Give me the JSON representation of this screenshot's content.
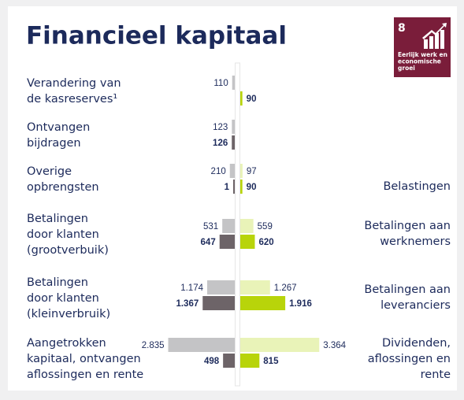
{
  "chart_data": {
    "type": "butterfly",
    "title": "Financieel kapitaal",
    "categories": [
      [
        "Verandering van",
        "de kasreserves¹"
      ],
      [
        "Ontvangen",
        "bijdragen"
      ],
      [
        "Overige",
        "opbrengsten"
      ],
      [
        "Betalingen",
        "door klanten",
        "(grootverbuik)"
      ],
      [
        "Betalingen",
        "door klanten",
        "(kleinverbruik)"
      ],
      [
        "Aangetrokken",
        "kapitaal, ontvangen",
        "aflossingen en rente"
      ]
    ],
    "right_categories": [
      null,
      null,
      [
        "Belastingen"
      ],
      [
        "Betalingen aan",
        "werknemers"
      ],
      [
        "Betalingen aan",
        "leveranciers"
      ],
      [
        "Dividenden,",
        "aflossingen en",
        "rente"
      ]
    ],
    "series": [
      {
        "side": "left",
        "row": "top",
        "color": "#c4c4c6",
        "values": [
          110,
          123,
          210,
          531,
          1174,
          2835
        ],
        "value_labels": [
          "110",
          "123",
          "210",
          "531",
          "1.174",
          "2.835"
        ]
      },
      {
        "side": "left",
        "row": "bottom",
        "color": "#6d6468",
        "values": [
          null,
          126,
          1,
          647,
          1367,
          498
        ],
        "value_labels": [
          null,
          "126",
          "1",
          "647",
          "1.367",
          "498"
        ]
      },
      {
        "side": "right",
        "row": "top",
        "color": "#e9f3b8",
        "values": [
          null,
          null,
          97,
          559,
          1267,
          3364
        ],
        "value_labels": [
          null,
          null,
          "97",
          "559",
          "1.267",
          "3.364"
        ]
      },
      {
        "side": "right",
        "row": "bottom",
        "color": "#b8d40a",
        "values": [
          90,
          null,
          90,
          620,
          1916,
          815
        ],
        "value_labels": [
          "90",
          null,
          "90",
          "620",
          "1.916",
          "815"
        ]
      }
    ]
  },
  "badge": {
    "number": 8,
    "lines": [
      "Eerlijk werk en",
      "economische",
      "groei"
    ]
  }
}
